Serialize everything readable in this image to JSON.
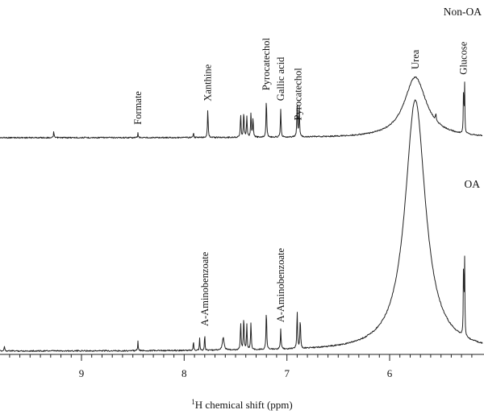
{
  "chart_data": {
    "type": "line",
    "xlabel_sup": "1",
    "xlabel_text": "H chemical shift (ppm)",
    "x_reversed": true,
    "xlim": [
      10.0,
      5.2
    ],
    "ticks": [
      9,
      8,
      7,
      6
    ],
    "tick_labels": [
      "9",
      "8",
      "7",
      "6"
    ],
    "series": [
      {
        "name": "Non-OA",
        "peaks": [
          {
            "x": 9.27,
            "h": 0.08,
            "w": 0.003
          },
          {
            "x": 8.45,
            "h": 0.06,
            "w": 0.003
          },
          {
            "x": 7.91,
            "h": 0.07,
            "w": 0.003
          },
          {
            "x": 7.77,
            "h": 0.35,
            "w": 0.004
          },
          {
            "x": 7.45,
            "h": 0.28,
            "w": 0.004
          },
          {
            "x": 7.42,
            "h": 0.32,
            "w": 0.004
          },
          {
            "x": 7.39,
            "h": 0.26,
            "w": 0.004
          },
          {
            "x": 7.35,
            "h": 0.3,
            "w": 0.004
          },
          {
            "x": 7.33,
            "h": 0.24,
            "w": 0.004
          },
          {
            "x": 7.2,
            "h": 0.48,
            "w": 0.004
          },
          {
            "x": 7.06,
            "h": 0.35,
            "w": 0.004
          },
          {
            "x": 6.9,
            "h": 0.4,
            "w": 0.004
          },
          {
            "x": 6.88,
            "h": 0.36,
            "w": 0.004
          },
          {
            "x": 5.75,
            "h": 0.75,
            "w": 0.13
          },
          {
            "x": 5.55,
            "h": 0.08,
            "w": 0.004
          },
          {
            "x": 5.28,
            "h": 0.58,
            "w": 0.003
          },
          {
            "x": 5.27,
            "h": 0.6,
            "w": 0.003
          }
        ],
        "labels": [
          {
            "text": "Formate",
            "x": 8.45
          },
          {
            "text": "Xanthine",
            "x": 7.77
          },
          {
            "text": "Pyrocatechol",
            "x": 7.2
          },
          {
            "text": "Gallic acid",
            "x": 7.06
          },
          {
            "text": "Pyrocatechol",
            "x": 6.89
          },
          {
            "text": "Urea",
            "x": 5.75
          },
          {
            "text": "Glucose",
            "x": 5.28
          }
        ]
      },
      {
        "name": "OA",
        "peaks": [
          {
            "x": 9.75,
            "h": 0.02,
            "w": 0.004
          },
          {
            "x": 8.45,
            "h": 0.04,
            "w": 0.003
          },
          {
            "x": 7.91,
            "h": 0.04,
            "w": 0.003
          },
          {
            "x": 7.85,
            "h": 0.05,
            "w": 0.003
          },
          {
            "x": 7.8,
            "h": 0.07,
            "w": 0.003
          },
          {
            "x": 7.62,
            "h": 0.05,
            "w": 0.01
          },
          {
            "x": 7.45,
            "h": 0.11,
            "w": 0.004
          },
          {
            "x": 7.42,
            "h": 0.13,
            "w": 0.004
          },
          {
            "x": 7.39,
            "h": 0.1,
            "w": 0.004
          },
          {
            "x": 7.35,
            "h": 0.11,
            "w": 0.004
          },
          {
            "x": 7.2,
            "h": 0.16,
            "w": 0.004
          },
          {
            "x": 7.06,
            "h": 0.08,
            "w": 0.004
          },
          {
            "x": 6.9,
            "h": 0.15,
            "w": 0.004
          },
          {
            "x": 6.87,
            "h": 0.12,
            "w": 0.004
          },
          {
            "x": 5.75,
            "h": 1.0,
            "w": 0.12
          },
          {
            "x": 5.28,
            "h": 0.3,
            "w": 0.003
          },
          {
            "x": 5.27,
            "h": 0.3,
            "w": 0.003
          }
        ],
        "labels": [
          {
            "text": "A-Aminobenzoate",
            "x": 7.8
          },
          {
            "text": "A-Aminobenzoate",
            "x": 7.06
          }
        ]
      }
    ]
  }
}
